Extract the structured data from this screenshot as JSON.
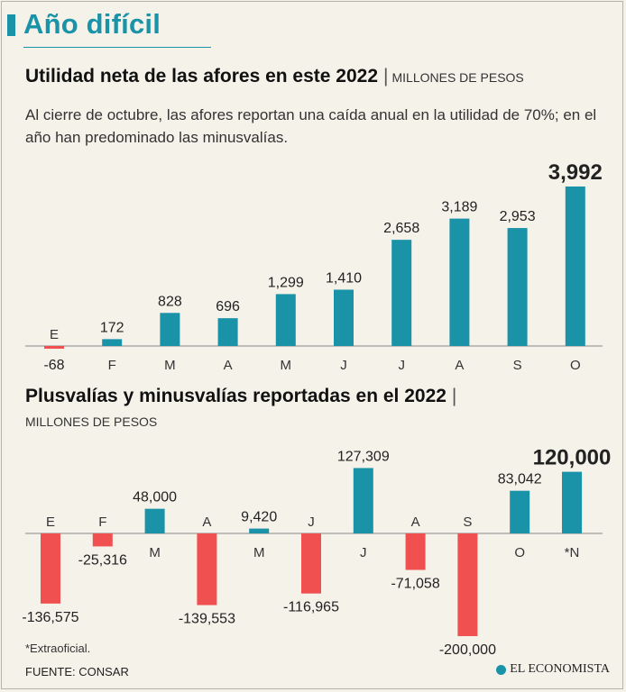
{
  "header": {
    "title": "Año difícil"
  },
  "chart1": {
    "heading": "Utilidad neta de las afores en este 2022",
    "separator": "|",
    "units": "MILLONES DE PESOS",
    "lede": "Al cierre de octubre, las afores reportan una caída anual en la utilidad de 70%; en el año han predominado las minusvalías."
  },
  "chart2": {
    "heading": "Plusvalías y minusvalías reportadas en el 2022",
    "separator": "|",
    "units": "MILLONES DE PESOS"
  },
  "footer": {
    "note": "*Extraoficial.",
    "source": "FUENTE: CONSAR",
    "logo": "EL ECONOMISTA"
  },
  "colors": {
    "positive": "#1a93a8",
    "negative": "#f0504f",
    "accent": "#1a93a8"
  },
  "chart_data": [
    {
      "type": "bar",
      "title": "Utilidad neta de las afores en este 2022",
      "ylabel": "Millones de pesos",
      "categories": [
        "E",
        "F",
        "M",
        "A",
        "M",
        "J",
        "J",
        "A",
        "S",
        "O"
      ],
      "values": [
        -68,
        172,
        828,
        696,
        1299,
        1410,
        2658,
        3189,
        2953,
        3992
      ],
      "labels": [
        "-68",
        "172",
        "828",
        "696",
        "1,299",
        "1,410",
        "2,658",
        "3,189",
        "2,953",
        "3,992"
      ],
      "highlight_last": true
    },
    {
      "type": "bar",
      "title": "Plusvalías y minusvalías reportadas en el 2022",
      "ylabel": "Millones de pesos",
      "categories": [
        "E",
        "F",
        "M",
        "A",
        "M",
        "J",
        "J",
        "A",
        "S",
        "O",
        "*N"
      ],
      "values": [
        -136575,
        -25316,
        48000,
        -139553,
        9420,
        -116965,
        127309,
        -71058,
        -200000,
        83042,
        120000
      ],
      "labels": [
        "-136,575",
        "-25,316",
        "48,000",
        "-139,553",
        "9,420",
        "-116,965",
        "127,309",
        "-71,058",
        "-200,000",
        "83,042",
        "120,000"
      ],
      "highlight_last": true
    }
  ]
}
